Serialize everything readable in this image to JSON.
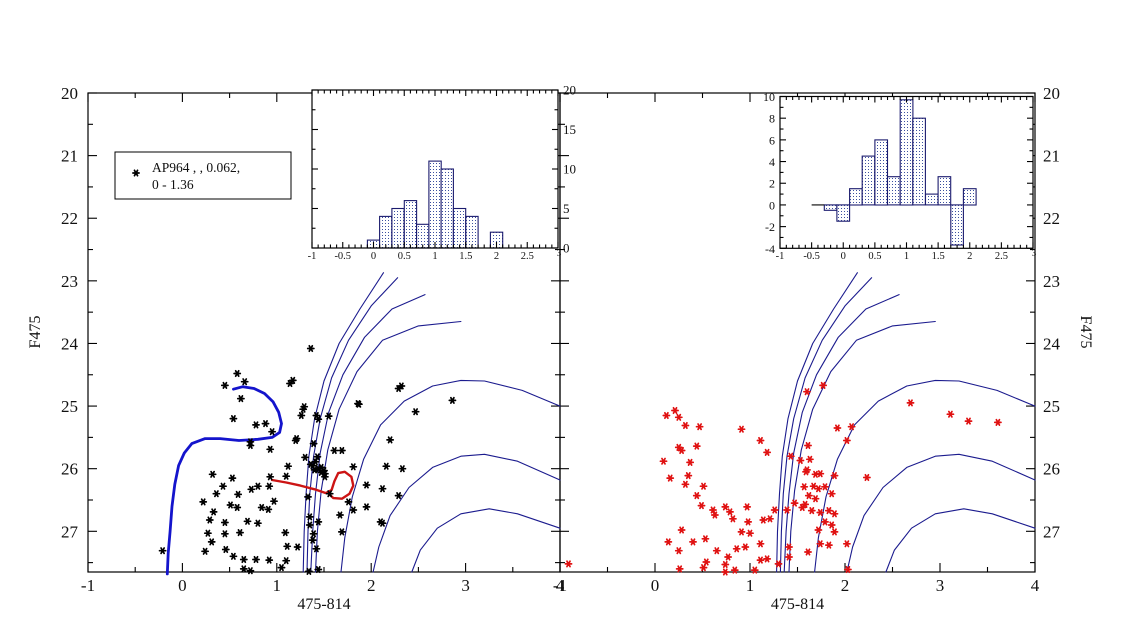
{
  "figure_title": "",
  "colors": {
    "isochrone": "#1b1b8e",
    "track": "#1414cc",
    "red_curve": "#cc1414",
    "black_points": "#000000",
    "red_points": "#e01212",
    "hist_edge": "#1b1b6e",
    "hist_dot": "#3c50a0",
    "text": "#111111"
  },
  "legend": {
    "line1": "AP964 ,  , 0.062,",
    "line2": "0 - 1.36"
  },
  "chart_data": [
    {
      "id": "left-cmd",
      "type": "scatter",
      "xlabel": "475-814",
      "ylabel": "F475",
      "xlim": [
        -1,
        4
      ],
      "ylim": [
        20,
        27.65
      ],
      "x_ticks": [
        -1,
        0,
        1,
        2,
        3,
        4
      ],
      "y_ticks": [
        20,
        21,
        22,
        23,
        24,
        25,
        26,
        27
      ],
      "y_label_side": "left",
      "legend_lines": [
        "AP964 ,  , 0.062,",
        "0 - 1.36"
      ],
      "points_color": "black",
      "points": [
        [
          1.36,
          24.08
        ],
        [
          0.58,
          24.48
        ],
        [
          0.66,
          24.61
        ],
        [
          0.45,
          24.67
        ],
        [
          1.17,
          24.59
        ],
        [
          1.14,
          24.64
        ],
        [
          0.62,
          24.88
        ],
        [
          0.54,
          25.2
        ],
        [
          0.78,
          25.3
        ],
        [
          0.95,
          25.41
        ],
        [
          1.28,
          25.05
        ],
        [
          1.26,
          25.15
        ],
        [
          1.44,
          25.21
        ],
        [
          1.29,
          25.01
        ],
        [
          1.42,
          25.15
        ],
        [
          1.86,
          24.96
        ],
        [
          2.29,
          24.72
        ],
        [
          2.86,
          24.91
        ],
        [
          2.47,
          25.09
        ],
        [
          1.87,
          24.97
        ],
        [
          1.55,
          25.16
        ],
        [
          0.72,
          25.63
        ],
        [
          0.93,
          25.69
        ],
        [
          1.21,
          25.52
        ],
        [
          1.3,
          25.82
        ],
        [
          1.43,
          25.81
        ],
        [
          1.12,
          25.96
        ],
        [
          1.41,
          25.89
        ],
        [
          1.51,
          26.08
        ],
        [
          1.1,
          26.12
        ],
        [
          0.93,
          26.13
        ],
        [
          0.32,
          26.09
        ],
        [
          0.53,
          26.15
        ],
        [
          0.43,
          26.28
        ],
        [
          0.59,
          26.41
        ],
        [
          0.73,
          26.33
        ],
        [
          0.8,
          26.28
        ],
        [
          0.92,
          26.28
        ],
        [
          0.97,
          26.52
        ],
        [
          0.84,
          26.62
        ],
        [
          0.91,
          26.65
        ],
        [
          0.22,
          26.53
        ],
        [
          0.36,
          26.4
        ],
        [
          0.33,
          26.69
        ],
        [
          0.51,
          26.58
        ],
        [
          0.58,
          26.62
        ],
        [
          0.69,
          26.84
        ],
        [
          0.8,
          26.87
        ],
        [
          0.61,
          27.02
        ],
        [
          0.45,
          26.86
        ],
        [
          0.29,
          26.82
        ],
        [
          0.27,
          27.03
        ],
        [
          0.45,
          27.04
        ],
        [
          0.31,
          27.17
        ],
        [
          0.46,
          27.29
        ],
        [
          0.24,
          27.32
        ],
        [
          -0.21,
          27.31
        ],
        [
          0.54,
          27.4
        ],
        [
          0.65,
          27.45
        ],
        [
          0.78,
          27.45
        ],
        [
          0.92,
          27.46
        ],
        [
          0.65,
          27.6
        ],
        [
          0.72,
          27.63
        ],
        [
          1.05,
          27.58
        ],
        [
          1.1,
          27.47
        ],
        [
          1.22,
          27.25
        ],
        [
          1.09,
          27.02
        ],
        [
          1.35,
          26.77
        ],
        [
          1.38,
          27.14
        ],
        [
          1.42,
          27.28
        ],
        [
          1.44,
          27.61
        ],
        [
          1.34,
          27.64
        ],
        [
          1.11,
          27.24
        ],
        [
          0.88,
          25.28
        ],
        [
          0.72,
          25.57
        ],
        [
          1.2,
          25.55
        ],
        [
          1.39,
          25.6
        ],
        [
          1.61,
          25.71
        ],
        [
          1.69,
          25.71
        ],
        [
          1.51,
          26.13
        ],
        [
          1.81,
          25.97
        ],
        [
          1.95,
          26.26
        ],
        [
          2.16,
          25.96
        ],
        [
          2.33,
          26.0
        ],
        [
          1.56,
          26.4
        ],
        [
          1.76,
          26.53
        ],
        [
          1.33,
          26.45
        ],
        [
          1.44,
          26.85
        ],
        [
          1.35,
          26.9
        ],
        [
          1.39,
          27.04
        ],
        [
          1.67,
          26.74
        ],
        [
          1.69,
          27.01
        ],
        [
          1.81,
          26.66
        ],
        [
          1.95,
          26.61
        ],
        [
          2.1,
          26.85
        ],
        [
          2.29,
          26.43
        ],
        [
          2.2,
          25.54
        ],
        [
          2.12,
          26.32
        ],
        [
          2.12,
          26.87
        ],
        [
          1.47,
          25.98
        ],
        [
          1.5,
          26.03
        ],
        [
          1.44,
          26.0
        ],
        [
          1.38,
          25.95
        ],
        [
          1.47,
          26.06
        ],
        [
          1.36,
          25.93
        ],
        [
          1.4,
          26.02
        ],
        [
          2.32,
          24.68
        ]
      ],
      "isochrones": [
        [
          [
            1.28,
            27.65
          ],
          [
            1.29,
            27.0
          ],
          [
            1.31,
            26.4
          ],
          [
            1.34,
            25.8
          ],
          [
            1.4,
            25.2
          ],
          [
            1.5,
            24.6
          ],
          [
            1.66,
            24.0
          ],
          [
            1.88,
            23.45
          ],
          [
            2.13,
            22.87
          ]
        ],
        [
          [
            1.32,
            27.65
          ],
          [
            1.33,
            27.0
          ],
          [
            1.35,
            26.4
          ],
          [
            1.39,
            25.8
          ],
          [
            1.46,
            25.2
          ],
          [
            1.58,
            24.55
          ],
          [
            1.76,
            23.95
          ],
          [
            2.0,
            23.4
          ],
          [
            2.28,
            22.95
          ]
        ],
        [
          [
            1.36,
            27.65
          ],
          [
            1.38,
            27.0
          ],
          [
            1.41,
            26.4
          ],
          [
            1.46,
            25.75
          ],
          [
            1.55,
            25.1
          ],
          [
            1.7,
            24.5
          ],
          [
            1.93,
            23.9
          ],
          [
            2.22,
            23.45
          ],
          [
            2.57,
            23.22
          ]
        ],
        [
          [
            1.41,
            27.65
          ],
          [
            1.43,
            27.0
          ],
          [
            1.47,
            26.35
          ],
          [
            1.54,
            25.7
          ],
          [
            1.66,
            25.05
          ],
          [
            1.85,
            24.45
          ],
          [
            2.12,
            23.95
          ],
          [
            2.5,
            23.72
          ],
          [
            2.95,
            23.65
          ]
        ],
        [
          [
            1.68,
            27.65
          ],
          [
            1.72,
            27.1
          ],
          [
            1.8,
            26.45
          ],
          [
            1.92,
            25.85
          ],
          [
            2.1,
            25.3
          ],
          [
            2.35,
            24.92
          ],
          [
            2.65,
            24.68
          ],
          [
            2.95,
            24.59
          ],
          [
            3.2,
            24.6
          ],
          [
            3.6,
            24.75
          ],
          [
            4.0,
            25.0
          ]
        ],
        [
          [
            2.02,
            27.65
          ],
          [
            2.08,
            27.25
          ],
          [
            2.2,
            26.75
          ],
          [
            2.4,
            26.3
          ],
          [
            2.65,
            25.98
          ],
          [
            2.95,
            25.8
          ],
          [
            3.2,
            25.77
          ],
          [
            3.55,
            25.88
          ],
          [
            4.0,
            26.18
          ]
        ],
        [
          [
            2.43,
            27.65
          ],
          [
            2.52,
            27.3
          ],
          [
            2.7,
            26.95
          ],
          [
            2.95,
            26.72
          ],
          [
            3.25,
            26.64
          ],
          [
            3.55,
            26.72
          ],
          [
            4.0,
            26.95
          ]
        ]
      ],
      "track": [
        [
          0.54,
          24.73
        ],
        [
          0.64,
          24.69
        ],
        [
          0.76,
          24.72
        ],
        [
          0.87,
          24.8
        ],
        [
          0.96,
          24.93
        ],
        [
          1.02,
          25.1
        ],
        [
          1.05,
          25.28
        ],
        [
          1.03,
          25.42
        ],
        [
          0.95,
          25.5
        ],
        [
          0.8,
          25.53
        ],
        [
          0.6,
          25.55
        ],
        [
          0.4,
          25.52
        ],
        [
          0.24,
          25.52
        ],
        [
          0.1,
          25.6
        ],
        [
          0.02,
          25.75
        ],
        [
          -0.04,
          25.95
        ],
        [
          -0.08,
          26.25
        ],
        [
          -0.11,
          26.6
        ],
        [
          -0.13,
          27.0
        ],
        [
          -0.15,
          27.35
        ],
        [
          -0.16,
          27.68
        ]
      ],
      "red_curve": [
        [
          0.95,
          26.18
        ],
        [
          1.1,
          26.22
        ],
        [
          1.25,
          26.27
        ],
        [
          1.4,
          26.33
        ],
        [
          1.52,
          26.39
        ],
        [
          1.58,
          26.34
        ],
        [
          1.61,
          26.2
        ],
        [
          1.65,
          26.07
        ],
        [
          1.72,
          26.05
        ],
        [
          1.79,
          26.13
        ],
        [
          1.81,
          26.27
        ],
        [
          1.77,
          26.4
        ],
        [
          1.69,
          26.48
        ],
        [
          1.6,
          26.47
        ],
        [
          1.55,
          26.4
        ]
      ]
    },
    {
      "id": "right-cmd",
      "type": "scatter",
      "xlabel": "475-814",
      "ylabel": "F475",
      "xlim": [
        -1,
        4
      ],
      "ylim": [
        20,
        27.65
      ],
      "x_ticks": [
        -1,
        0,
        1,
        2,
        3,
        4
      ],
      "y_ticks": [
        20,
        21,
        22,
        23,
        24,
        25,
        26,
        27
      ],
      "y_label_side": "right",
      "isochrones_shared_with": "left-cmd",
      "points_color": "red",
      "points": [
        [
          -0.91,
          27.52
        ],
        [
          0.12,
          25.15
        ],
        [
          0.21,
          25.07
        ],
        [
          0.25,
          25.18
        ],
        [
          0.32,
          25.31
        ],
        [
          0.47,
          25.33
        ],
        [
          0.91,
          25.37
        ],
        [
          1.11,
          25.55
        ],
        [
          1.18,
          25.74
        ],
        [
          0.25,
          25.66
        ],
        [
          0.28,
          25.71
        ],
        [
          0.44,
          25.64
        ],
        [
          0.09,
          25.88
        ],
        [
          0.37,
          25.9
        ],
        [
          0.16,
          26.15
        ],
        [
          0.35,
          26.11
        ],
        [
          0.32,
          26.25
        ],
        [
          0.51,
          26.28
        ],
        [
          0.44,
          26.43
        ],
        [
          0.49,
          26.59
        ],
        [
          0.61,
          26.66
        ],
        [
          0.74,
          26.61
        ],
        [
          0.79,
          26.69
        ],
        [
          0.63,
          26.74
        ],
        [
          0.82,
          26.8
        ],
        [
          0.97,
          26.61
        ],
        [
          0.98,
          26.85
        ],
        [
          1.14,
          26.82
        ],
        [
          0.91,
          27.01
        ],
        [
          1.0,
          27.03
        ],
        [
          1.11,
          27.2
        ],
        [
          1.21,
          26.8
        ],
        [
          1.26,
          26.66
        ],
        [
          1.39,
          26.66
        ],
        [
          0.28,
          26.98
        ],
        [
          0.14,
          27.17
        ],
        [
          0.25,
          27.31
        ],
        [
          0.4,
          27.17
        ],
        [
          0.53,
          27.12
        ],
        [
          0.65,
          27.31
        ],
        [
          0.77,
          27.41
        ],
        [
          0.86,
          27.28
        ],
        [
          0.95,
          27.25
        ],
        [
          1.11,
          27.46
        ],
        [
          1.18,
          27.44
        ],
        [
          0.26,
          27.6
        ],
        [
          0.51,
          27.58
        ],
        [
          0.74,
          27.53
        ],
        [
          0.84,
          27.62
        ],
        [
          1.05,
          27.62
        ],
        [
          1.3,
          27.52
        ],
        [
          1.41,
          27.41
        ],
        [
          1.41,
          27.25
        ],
        [
          1.6,
          24.77
        ],
        [
          1.77,
          24.67
        ],
        [
          1.61,
          25.63
        ],
        [
          1.43,
          25.8
        ],
        [
          1.6,
          26.02
        ],
        [
          1.58,
          26.57
        ],
        [
          1.92,
          25.35
        ],
        [
          2.07,
          25.33
        ],
        [
          2.02,
          25.55
        ],
        [
          1.53,
          25.87
        ],
        [
          1.63,
          25.85
        ],
        [
          1.59,
          26.05
        ],
        [
          1.69,
          26.09
        ],
        [
          1.74,
          26.08
        ],
        [
          1.89,
          26.11
        ],
        [
          2.23,
          26.14
        ],
        [
          1.57,
          26.29
        ],
        [
          1.67,
          26.28
        ],
        [
          1.72,
          26.32
        ],
        [
          1.79,
          26.29
        ],
        [
          1.86,
          26.4
        ],
        [
          1.62,
          26.43
        ],
        [
          1.69,
          26.48
        ],
        [
          1.65,
          26.67
        ],
        [
          1.74,
          26.7
        ],
        [
          1.83,
          26.67
        ],
        [
          1.89,
          26.72
        ],
        [
          1.79,
          26.85
        ],
        [
          1.86,
          26.9
        ],
        [
          1.72,
          26.98
        ],
        [
          1.89,
          27.01
        ],
        [
          1.74,
          27.2
        ],
        [
          1.83,
          27.22
        ],
        [
          2.02,
          27.2
        ],
        [
          1.61,
          27.33
        ],
        [
          2.03,
          27.61
        ],
        [
          2.69,
          24.95
        ],
        [
          3.11,
          25.13
        ],
        [
          3.3,
          25.24
        ],
        [
          3.61,
          25.26
        ],
        [
          0.74,
          27.65
        ],
        [
          0.54,
          27.49
        ],
        [
          1.47,
          26.55
        ],
        [
          1.55,
          26.62
        ]
      ]
    },
    {
      "id": "left-inset-hist",
      "type": "histogram",
      "xlim": [
        -1,
        3
      ],
      "ylim": [
        0,
        20
      ],
      "x_major_ticks": [
        -1,
        -0.5,
        0,
        0.5,
        1,
        1.5,
        2,
        2.5,
        3
      ],
      "y_ticks": [
        0,
        5,
        10,
        15,
        20
      ],
      "y_label_side": "right",
      "bin_start": -0.1,
      "bin_width": 0.2,
      "values": [
        1,
        4,
        5,
        6,
        3,
        11,
        10,
        5,
        4,
        0,
        2
      ]
    },
    {
      "id": "right-inset-hist",
      "type": "histogram",
      "xlim": [
        -1,
        3
      ],
      "ylim": [
        -4,
        10
      ],
      "x_major_ticks": [
        -1,
        -0.5,
        0,
        0.5,
        1,
        1.5,
        2,
        2.5,
        3
      ],
      "y_ticks": [
        -4,
        -2,
        0,
        2,
        4,
        6,
        8,
        10
      ],
      "y_label_side": "left",
      "bin_start": -0.3,
      "bin_width": 0.2,
      "values": [
        -0.5,
        -1.5,
        1.5,
        4.5,
        6,
        2.6,
        9.7,
        8,
        1,
        2.6,
        -3.7,
        1.5
      ],
      "zero_segment": [
        -0.5,
        -0.3
      ]
    }
  ]
}
